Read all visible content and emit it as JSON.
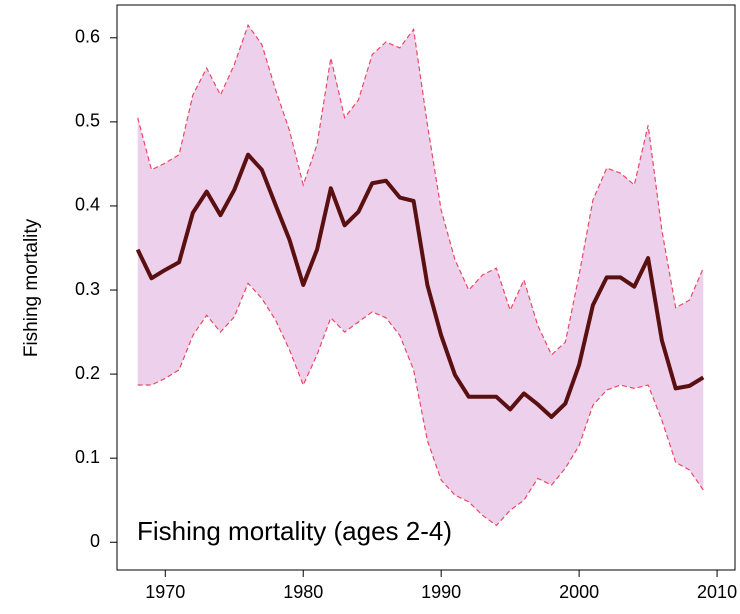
{
  "chart_data": {
    "type": "line",
    "annotation": "Fishing mortality (ages 2-4)",
    "y_label": "Fishing mortality",
    "x": [
      1968,
      1969,
      1970,
      1971,
      1972,
      1973,
      1974,
      1975,
      1976,
      1977,
      1978,
      1979,
      1980,
      1981,
      1982,
      1983,
      1984,
      1985,
      1986,
      1987,
      1988,
      1989,
      1990,
      1991,
      1992,
      1993,
      1994,
      1995,
      1996,
      1997,
      1998,
      1999,
      2000,
      2001,
      2002,
      2003,
      2004,
      2005,
      2006,
      2007,
      2008,
      2009
    ],
    "values": [
      0.348,
      0.314,
      0.324,
      0.333,
      0.392,
      0.417,
      0.389,
      0.419,
      0.461,
      0.443,
      0.401,
      0.36,
      0.306,
      0.348,
      0.421,
      0.377,
      0.393,
      0.427,
      0.43,
      0.41,
      0.406,
      0.306,
      0.246,
      0.199,
      0.173,
      0.173,
      0.173,
      0.158,
      0.177,
      0.164,
      0.149,
      0.165,
      0.211,
      0.282,
      0.315,
      0.315,
      0.304,
      0.338,
      0.24,
      0.183,
      0.186,
      0.196
    ],
    "upper": [
      0.505,
      0.443,
      0.451,
      0.461,
      0.532,
      0.564,
      0.532,
      0.568,
      0.615,
      0.592,
      0.538,
      0.49,
      0.425,
      0.473,
      0.576,
      0.505,
      0.526,
      0.58,
      0.595,
      0.588,
      0.61,
      0.497,
      0.395,
      0.336,
      0.3,
      0.318,
      0.326,
      0.276,
      0.312,
      0.258,
      0.223,
      0.238,
      0.318,
      0.407,
      0.445,
      0.439,
      0.425,
      0.496,
      0.371,
      0.279,
      0.288,
      0.326
    ],
    "lower": [
      0.187,
      0.187,
      0.195,
      0.205,
      0.246,
      0.27,
      0.25,
      0.268,
      0.308,
      0.29,
      0.264,
      0.229,
      0.187,
      0.223,
      0.267,
      0.25,
      0.262,
      0.274,
      0.267,
      0.246,
      0.205,
      0.121,
      0.074,
      0.056,
      0.048,
      0.032,
      0.02,
      0.038,
      0.05,
      0.076,
      0.068,
      0.088,
      0.115,
      0.163,
      0.181,
      0.187,
      0.183,
      0.187,
      0.145,
      0.095,
      0.086,
      0.062
    ],
    "color": "#5a1010",
    "band_color": "#ecd0ec",
    "band_edge_color": "#e84a64",
    "xlim": [
      1966.5,
      2011.3
    ],
    "ylim": [
      -0.033,
      0.639
    ],
    "xticks": [
      1970,
      1980,
      1990,
      2000,
      2010
    ],
    "yticks": [
      0,
      0.1,
      0.2,
      0.3,
      0.4,
      0.5,
      0.6
    ]
  }
}
